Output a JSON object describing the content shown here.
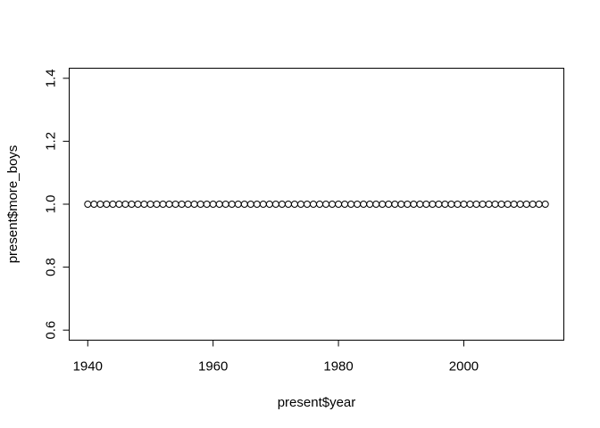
{
  "chart_data": {
    "type": "scatter",
    "title": "",
    "xlabel": "present$year",
    "ylabel": "present$more_boys",
    "xlim": [
      1937.04,
      2015.96
    ],
    "ylim": [
      0.568,
      1.432
    ],
    "x_ticks": [
      1940,
      1960,
      1980,
      2000
    ],
    "x_tick_labels": [
      "1940",
      "1960",
      "1980",
      "2000"
    ],
    "y_ticks": [
      0.6,
      0.8,
      1.0,
      1.2,
      1.4
    ],
    "y_tick_labels": [
      "0.6",
      "0.8",
      "1.0",
      "1.2",
      "1.4"
    ],
    "grid": false,
    "marker": "open-circle",
    "x": [
      1940,
      1941,
      1942,
      1943,
      1944,
      1945,
      1946,
      1947,
      1948,
      1949,
      1950,
      1951,
      1952,
      1953,
      1954,
      1955,
      1956,
      1957,
      1958,
      1959,
      1960,
      1961,
      1962,
      1963,
      1964,
      1965,
      1966,
      1967,
      1968,
      1969,
      1970,
      1971,
      1972,
      1973,
      1974,
      1975,
      1976,
      1977,
      1978,
      1979,
      1980,
      1981,
      1982,
      1983,
      1984,
      1985,
      1986,
      1987,
      1988,
      1989,
      1990,
      1991,
      1992,
      1993,
      1994,
      1995,
      1996,
      1997,
      1998,
      1999,
      2000,
      2001,
      2002,
      2003,
      2004,
      2005,
      2006,
      2007,
      2008,
      2009,
      2010,
      2011,
      2012,
      2013
    ],
    "y": [
      1,
      1,
      1,
      1,
      1,
      1,
      1,
      1,
      1,
      1,
      1,
      1,
      1,
      1,
      1,
      1,
      1,
      1,
      1,
      1,
      1,
      1,
      1,
      1,
      1,
      1,
      1,
      1,
      1,
      1,
      1,
      1,
      1,
      1,
      1,
      1,
      1,
      1,
      1,
      1,
      1,
      1,
      1,
      1,
      1,
      1,
      1,
      1,
      1,
      1,
      1,
      1,
      1,
      1,
      1,
      1,
      1,
      1,
      1,
      1,
      1,
      1,
      1,
      1,
      1,
      1,
      1,
      1,
      1,
      1,
      1,
      1,
      1,
      1
    ]
  }
}
